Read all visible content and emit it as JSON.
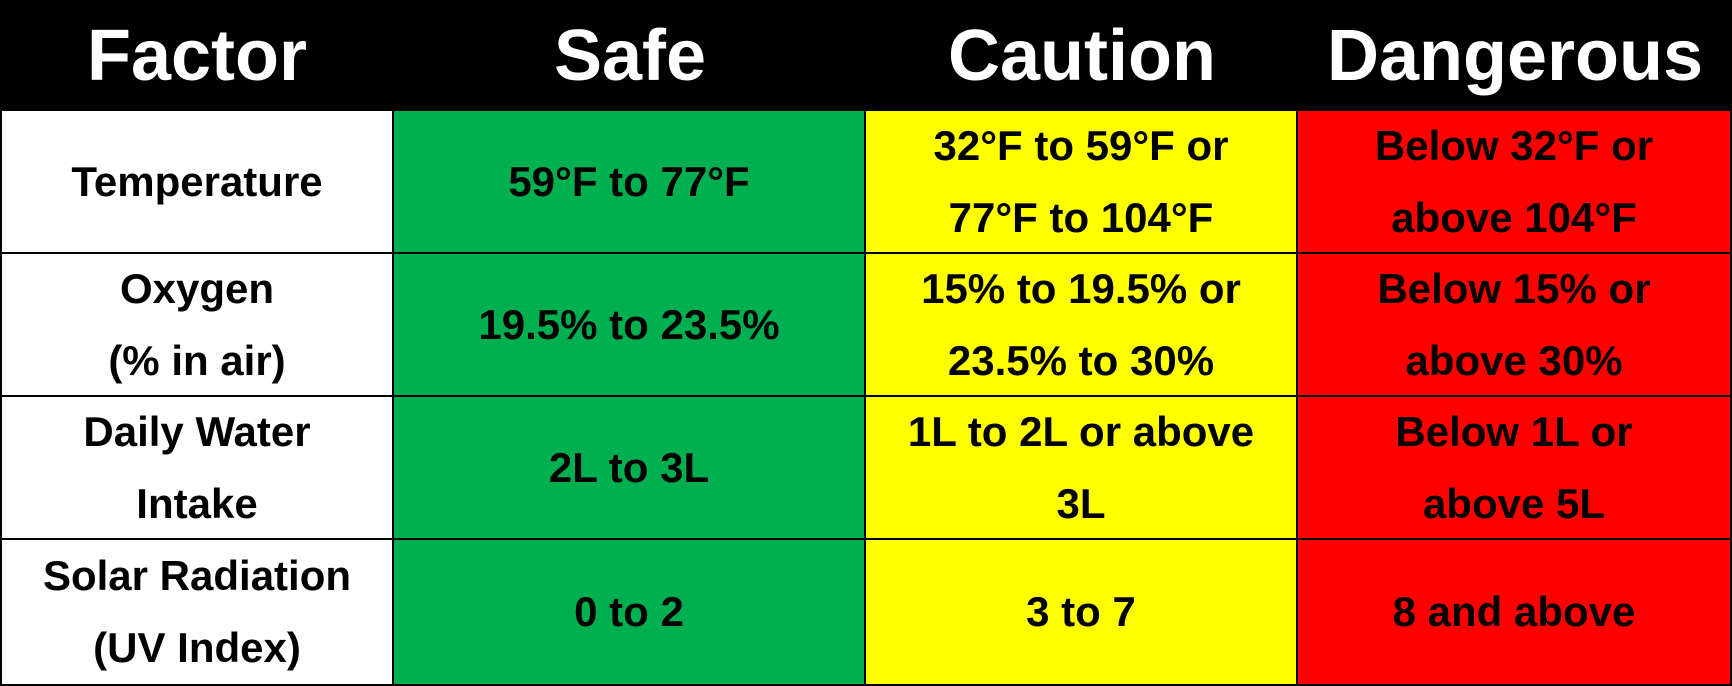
{
  "colors": {
    "header_bg": "#000000",
    "header_text": "#ffffff",
    "safe": "#00b050",
    "caution": "#ffff00",
    "dangerous": "#ff0000"
  },
  "headers": {
    "factor": "Factor",
    "safe": "Safe",
    "caution": "Caution",
    "dangerous": "Dangerous"
  },
  "rows": [
    {
      "factor": "Temperature",
      "safe": "59°F to 77°F",
      "caution": "32°F to 59°F or\n77°F to 104°F",
      "dangerous": "Below 32°F or\nabove 104°F"
    },
    {
      "factor": "Oxygen\n(% in air)",
      "safe": "19.5% to 23.5%",
      "caution": "15% to 19.5% or\n23.5% to 30%",
      "dangerous": "Below 15% or\nabove 30%"
    },
    {
      "factor": "Daily Water\nIntake",
      "safe": "2L to 3L",
      "caution": "1L to 2L or above\n3L",
      "dangerous": "Below 1L or\nabove 5L"
    },
    {
      "factor": "Solar Radiation\n(UV Index)",
      "safe": "0 to 2",
      "caution": "3 to 7",
      "dangerous": "8 and above"
    }
  ]
}
